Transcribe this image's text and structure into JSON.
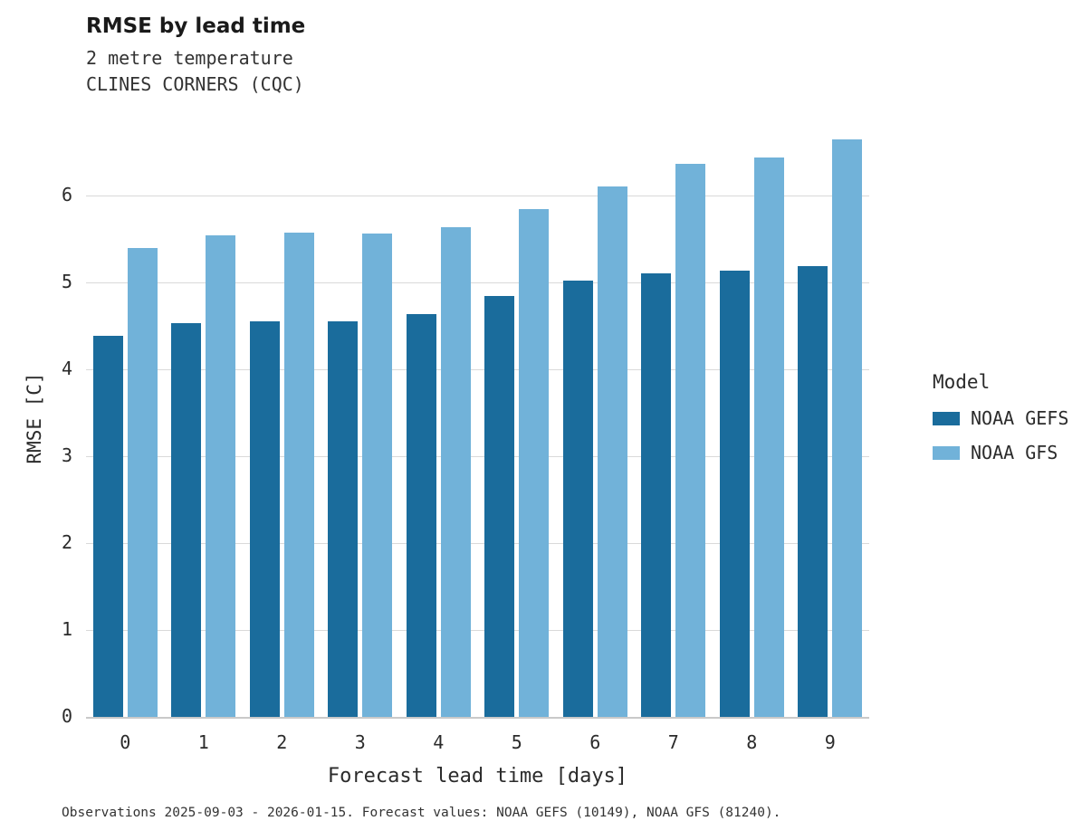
{
  "title": "RMSE by lead time",
  "subtitle_line1": "2 metre temperature",
  "subtitle_line2": "CLINES CORNERS (CQC)",
  "caption": "Observations 2025-09-03 - 2026-01-15. Forecast values: NOAA GEFS (10149), NOAA GFS (81240).",
  "legend": {
    "title": "Model"
  },
  "colors": {
    "gefs": "#1a6c9c",
    "gfs": "#71b2d9",
    "grid": "#d9d9d9",
    "axis": "#c9c9c9",
    "text": "#2b2b2b"
  },
  "chart_data": {
    "type": "bar",
    "title": "RMSE by lead time",
    "subtitle": "2 metre temperature — CLINES CORNERS (CQC)",
    "categories": [
      "0",
      "1",
      "2",
      "3",
      "4",
      "5",
      "6",
      "7",
      "8",
      "9"
    ],
    "series": [
      {
        "name": "NOAA GEFS",
        "color": "#1a6c9c",
        "values": [
          4.39,
          4.53,
          4.55,
          4.56,
          4.64,
          4.85,
          5.02,
          5.11,
          5.14,
          5.19
        ]
      },
      {
        "name": "NOAA GFS",
        "color": "#71b2d9",
        "values": [
          5.4,
          5.54,
          5.58,
          5.57,
          5.64,
          5.85,
          6.11,
          6.37,
          6.44,
          6.65
        ]
      }
    ],
    "xlabel": "Forecast lead time [days]",
    "ylabel": "RMSE [C]",
    "ylim": [
      0,
      6.9
    ],
    "yticks": [
      0,
      1,
      2,
      3,
      4,
      5,
      6
    ],
    "grid": true,
    "legend_position": "right"
  }
}
